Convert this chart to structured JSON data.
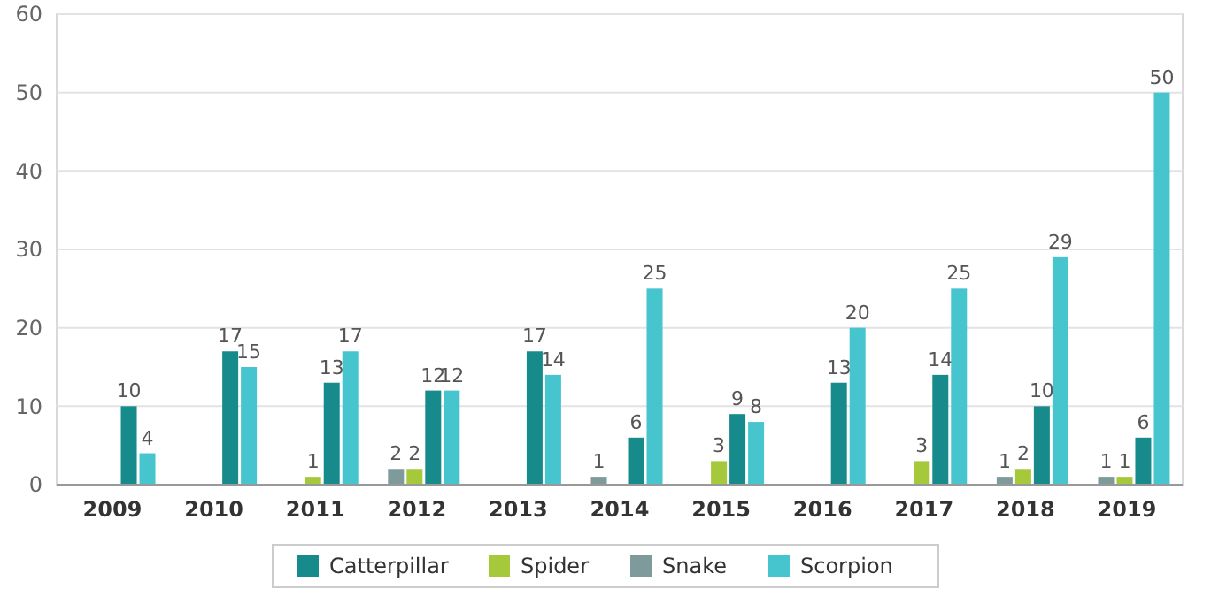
{
  "chart_data": {
    "type": "bar",
    "categories": [
      "2009",
      "2010",
      "2011",
      "2012",
      "2013",
      "2014",
      "2015",
      "2016",
      "2017",
      "2018",
      "2019"
    ],
    "series": [
      {
        "name": "Catterpillar",
        "color": "#178a8c",
        "values": [
          10,
          17,
          13,
          12,
          17,
          6,
          9,
          13,
          14,
          10,
          6
        ]
      },
      {
        "name": "Spider",
        "color": "#a5c93b",
        "values": [
          null,
          null,
          1,
          2,
          null,
          null,
          3,
          null,
          3,
          2,
          1
        ]
      },
      {
        "name": "Snake",
        "color": "#7e9a9b",
        "values": [
          null,
          null,
          null,
          2,
          null,
          1,
          null,
          null,
          null,
          1,
          1
        ]
      },
      {
        "name": "Scorpion",
        "color": "#46c5cf",
        "values": [
          4,
          15,
          17,
          12,
          14,
          25,
          8,
          20,
          25,
          29,
          50
        ]
      }
    ],
    "ylim": [
      0,
      60
    ],
    "yticks": [
      0,
      10,
      20,
      30,
      40,
      50,
      60
    ],
    "grid": "y",
    "legend": "bottom",
    "data_labels": true
  }
}
